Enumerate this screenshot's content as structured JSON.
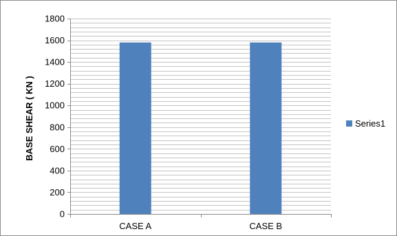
{
  "chart_data": {
    "type": "bar",
    "categories": [
      "CASE A",
      "CASE B"
    ],
    "series": [
      {
        "name": "Series1",
        "values": [
          1580,
          1580
        ]
      }
    ],
    "ylabel": "BASE SHEAR ( KN )",
    "xlabel": "",
    "ylim": [
      0,
      1800
    ],
    "yticks": [
      0,
      200,
      400,
      600,
      800,
      1000,
      1200,
      1400,
      1600,
      1800
    ],
    "grid": true,
    "legend": "right",
    "colors": {
      "bar": "#4f81bd",
      "grid": "#898989",
      "axis": "#898989"
    }
  }
}
